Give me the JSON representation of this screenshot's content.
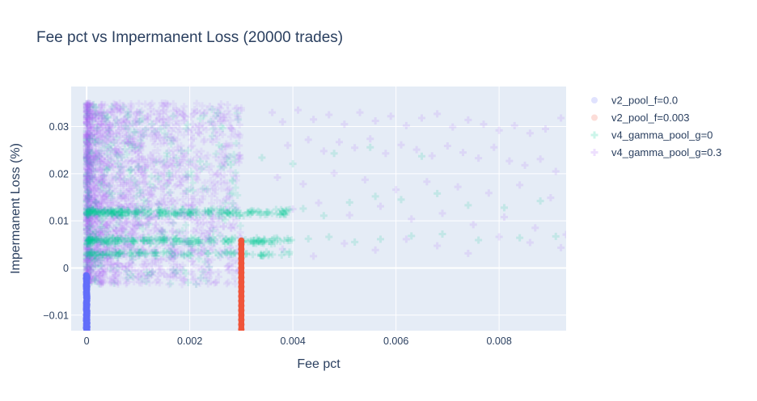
{
  "chart_data": {
    "type": "scatter",
    "title": "Fee pct vs Impermanent Loss (20000 trades)",
    "xlabel": "Fee pct",
    "ylabel": "Impermanent Loss (%)",
    "xlim": [
      -0.0003,
      0.0093
    ],
    "ylim": [
      -0.0133,
      0.0385
    ],
    "x_ticks": [
      0,
      0.002,
      0.004,
      0.006,
      0.008
    ],
    "x_tick_labels": [
      "0",
      "0.002",
      "0.004",
      "0.006",
      "0.008"
    ],
    "y_ticks": [
      -0.01,
      0,
      0.01,
      0.02,
      0.03
    ],
    "y_tick_labels": [
      "−0.01",
      "0",
      "0.01",
      "0.02",
      "0.03"
    ],
    "grid": true,
    "legend_position": "right",
    "series": [
      {
        "name": "v2_pool_f=0.0",
        "marker": "circle",
        "color": "#636efa",
        "opacity": 0.9,
        "legend_opacity": 0.2,
        "x": [
          0,
          0,
          0,
          0,
          0,
          0,
          0,
          0,
          0,
          0,
          0,
          0,
          0,
          0,
          0,
          0
        ],
        "y": [
          -0.002,
          -0.003,
          -0.004,
          -0.005,
          -0.006,
          -0.0065,
          -0.007,
          -0.0075,
          -0.008,
          -0.0085,
          -0.009,
          -0.0095,
          -0.01,
          -0.011,
          -0.012,
          -0.013
        ]
      },
      {
        "name": "v2_pool_f=0.003",
        "marker": "circle",
        "color": "#ef553b",
        "opacity": 0.9,
        "legend_opacity": 0.2,
        "x": [
          0.003,
          0.003,
          0.003,
          0.003,
          0.003,
          0.003,
          0.003,
          0.003,
          0.003,
          0.003,
          0.003,
          0.003,
          0.003,
          0.003,
          0.003,
          0.003,
          0.003,
          0.003,
          0.003,
          0.003
        ],
        "y": [
          0.0058,
          0.005,
          0.004,
          0.003,
          0.002,
          0.001,
          0.0,
          -0.001,
          -0.002,
          -0.003,
          -0.004,
          -0.005,
          -0.006,
          -0.007,
          -0.008,
          -0.009,
          -0.01,
          -0.011,
          -0.012,
          -0.013
        ]
      },
      {
        "name": "v4_gamma_pool_g=0",
        "marker": "cross",
        "color": "#00cc96",
        "opacity": 0.15,
        "legend_opacity": 0.2,
        "x": [
          0.0001,
          0.0003,
          0.0006,
          0.0009,
          0.0012,
          0.0015,
          0.0018,
          0.0021,
          0.0024,
          0.0027,
          0.003,
          0.0033,
          0.0036,
          0.0039,
          0.0043,
          0.0047,
          0.0052,
          0.0057,
          0.0063,
          0.0069,
          0.0076,
          0.0084,
          0.0091,
          0.0002,
          0.0005,
          0.0008,
          0.0011,
          0.0014,
          0.0017,
          0.002,
          0.0023,
          0.0026,
          0.0029,
          0.0032,
          0.0035,
          0.0038,
          0.0042,
          0.0046,
          0.0051,
          0.0056,
          0.0061,
          0.0068,
          0.0074,
          0.0081,
          0.0088,
          0.0004,
          0.001,
          0.0016,
          0.0022,
          0.0028,
          0.0034,
          0.004,
          0.0048,
          0.0055,
          0.0065
        ],
        "y": [
          0.006,
          0.0055,
          0.0062,
          0.0058,
          0.0065,
          0.006,
          0.0057,
          0.0063,
          0.0059,
          0.0061,
          0.0056,
          0.0064,
          0.006,
          0.0058,
          0.0062,
          0.0066,
          0.0055,
          0.0061,
          0.0068,
          0.0072,
          0.0059,
          0.0064,
          0.0067,
          0.012,
          0.0115,
          0.0122,
          0.0118,
          0.0124,
          0.0116,
          0.0121,
          0.0119,
          0.0125,
          0.0117,
          0.0122,
          0.0114,
          0.012,
          0.0126,
          0.0111,
          0.0139,
          0.0152,
          0.0145,
          0.0158,
          0.0133,
          0.0128,
          0.0142,
          0.0208,
          0.0215,
          0.0201,
          0.0226,
          0.0219,
          0.0234,
          0.0221,
          0.0243,
          0.0256,
          0.0237
        ]
      },
      {
        "name": "v4_gamma_pool_g=0.3",
        "marker": "cross",
        "color": "#ab63fa",
        "opacity": 0.15,
        "legend_opacity": 0.2,
        "x": [
          0.0036,
          0.0038,
          0.0041,
          0.0044,
          0.0047,
          0.005,
          0.0053,
          0.0056,
          0.0059,
          0.0062,
          0.0065,
          0.0068,
          0.0071,
          0.0074,
          0.0077,
          0.008,
          0.0083,
          0.0086,
          0.0089,
          0.0092,
          0.0039,
          0.0043,
          0.0046,
          0.0049,
          0.0052,
          0.0055,
          0.0058,
          0.0061,
          0.0064,
          0.0067,
          0.007,
          0.0073,
          0.0076,
          0.0079,
          0.0082,
          0.0085,
          0.0088,
          0.0091,
          0.0037,
          0.0042,
          0.0048,
          0.0054,
          0.006,
          0.0066,
          0.0072,
          0.0078,
          0.0084,
          0.009,
          0.004,
          0.0045,
          0.0051,
          0.0057,
          0.0063,
          0.0069,
          0.0075,
          0.0081,
          0.0087,
          0.0093,
          0.0038,
          0.0044,
          0.005,
          0.0056,
          0.0062,
          0.0068,
          0.0074,
          0.008,
          0.0086,
          0.0092
        ],
        "y": [
          0.033,
          0.031,
          0.0335,
          0.0315,
          0.0325,
          0.0305,
          0.033,
          0.0312,
          0.0322,
          0.0302,
          0.0318,
          0.0327,
          0.0299,
          0.0314,
          0.0305,
          0.0292,
          0.0302,
          0.0286,
          0.0295,
          0.0318,
          0.026,
          0.0272,
          0.0248,
          0.0267,
          0.0255,
          0.0274,
          0.0243,
          0.0261,
          0.0251,
          0.0238,
          0.0259,
          0.0245,
          0.0233,
          0.0256,
          0.0227,
          0.0218,
          0.0231,
          0.0205,
          0.0192,
          0.0178,
          0.0201,
          0.0187,
          0.0166,
          0.0183,
          0.0172,
          0.0159,
          0.0176,
          0.0149,
          0.0125,
          0.0138,
          0.0112,
          0.0131,
          0.0104,
          0.0116,
          0.0092,
          0.0108,
          0.0085,
          0.0071,
          0.004,
          0.0025,
          0.0052,
          0.0038,
          0.0061,
          0.0047,
          0.0031,
          0.0066,
          0.0054,
          0.0043
        ]
      }
    ]
  }
}
